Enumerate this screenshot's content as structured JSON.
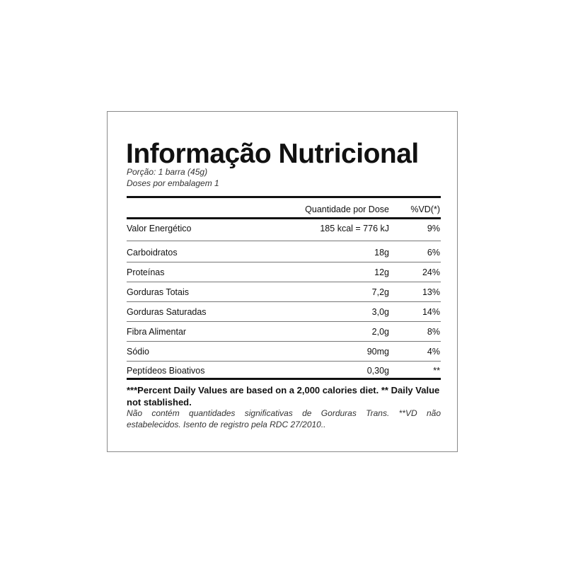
{
  "title": "Informação Nutricional",
  "portion": "Porção: 1 barra (45g)",
  "doses": "Doses por embalagem 1",
  "header": {
    "amount": "Quantidade por Dose",
    "vd": "%VD(*)"
  },
  "rows": [
    {
      "label": "Valor Energético",
      "amount": "185 kcal = 776 kJ",
      "vd": "9%"
    },
    {
      "label": "Carboidratos",
      "amount": "18g",
      "vd": "6%"
    },
    {
      "label": "Proteínas",
      "amount": "12g",
      "vd": "24%"
    },
    {
      "label": "Gorduras Totais",
      "amount": "7,2g",
      "vd": "13%"
    },
    {
      "label": "Gorduras Saturadas",
      "amount": "3,0g",
      "vd": "14%"
    },
    {
      "label": "Fibra Alimentar",
      "amount": "2,0g",
      "vd": "8%"
    },
    {
      "label": "Sódio",
      "amount": "90mg",
      "vd": "4%"
    },
    {
      "label": "Peptídeos Bioativos",
      "amount": "0,30g",
      "vd": "**"
    }
  ],
  "footnote_bold": "***Percent Daily Values are based on a 2,000 calories diet. ** Daily Value not stablished.",
  "footnote_italic": "Não contém quantidades significativas de Gorduras Trans. **VD não estabelecidos. Isento de registro pela RDC 27/2010.."
}
